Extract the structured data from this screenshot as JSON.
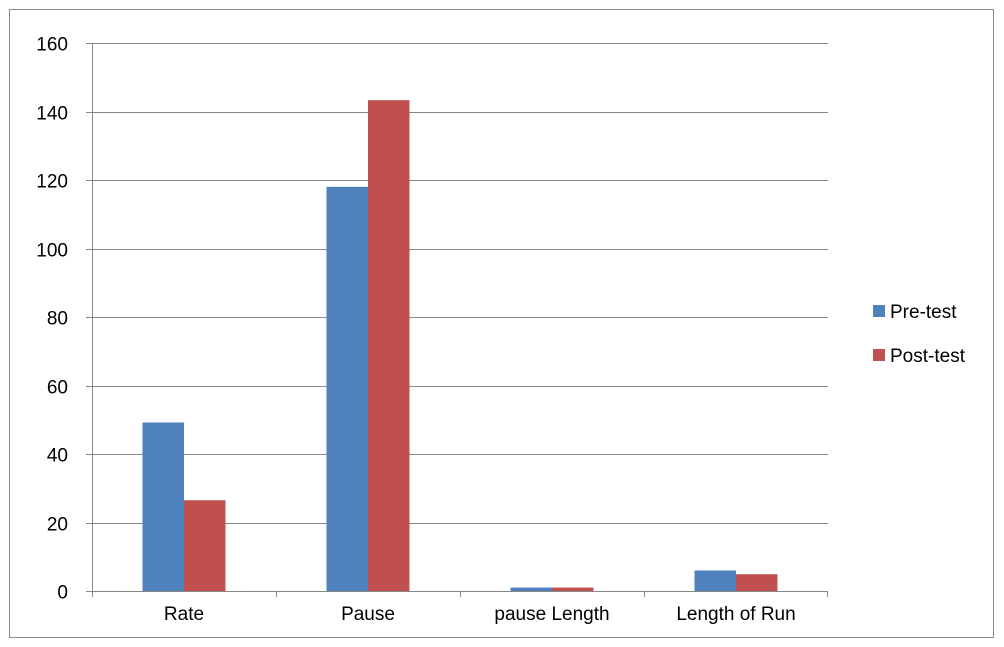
{
  "chart_data": {
    "type": "bar",
    "title": "",
    "xlabel": "",
    "ylabel": "",
    "categories": [
      "Rate",
      "Pause",
      "pause Length",
      "Length of Run"
    ],
    "series": [
      {
        "name": "Pre-test",
        "color": "#4f81bd",
        "values": [
          49.2,
          118,
          1,
          6
        ]
      },
      {
        "name": "Post-test",
        "color": "#c0504d",
        "values": [
          26.5,
          143.3,
          1,
          4.9
        ]
      }
    ],
    "ylim": [
      0,
      160
    ],
    "yticks": [
      0,
      20,
      40,
      60,
      80,
      100,
      120,
      140,
      160
    ],
    "grid": true,
    "legend_position": "right"
  }
}
